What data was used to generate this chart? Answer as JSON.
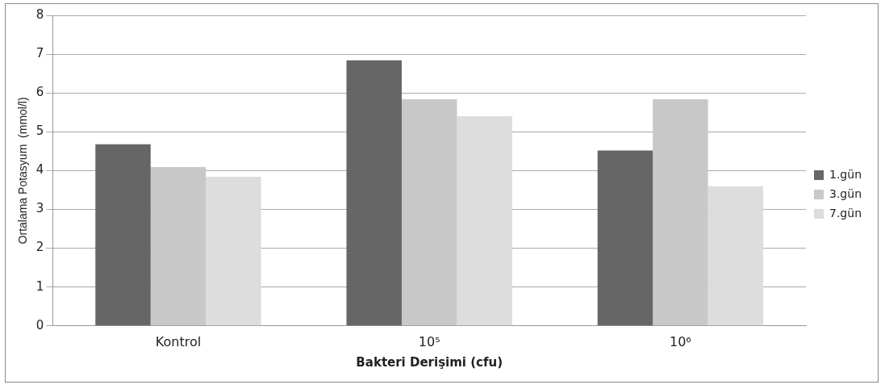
{
  "chart_data": {
    "type": "bar",
    "xlabel": "Bakteri Derişimi (cfu)",
    "ylabel": "Ortalama Potasyum  (mmol/l)",
    "categories": [
      "Kontrol",
      "10⁵",
      "10⁶"
    ],
    "series": [
      {
        "name": "1.gün",
        "color": "#666666",
        "values": [
          4.68,
          6.84,
          4.52
        ]
      },
      {
        "name": "3.gün",
        "color": "#c8c8c8",
        "values": [
          4.09,
          5.84,
          5.84
        ]
      },
      {
        "name": "7.gün",
        "color": "#dddddd",
        "values": [
          3.84,
          5.4,
          3.6
        ]
      }
    ],
    "ylim": [
      0,
      8
    ],
    "yticks": [
      0,
      1,
      2,
      3,
      4,
      5,
      6,
      7,
      8
    ],
    "grid": "y",
    "legend": "right"
  }
}
